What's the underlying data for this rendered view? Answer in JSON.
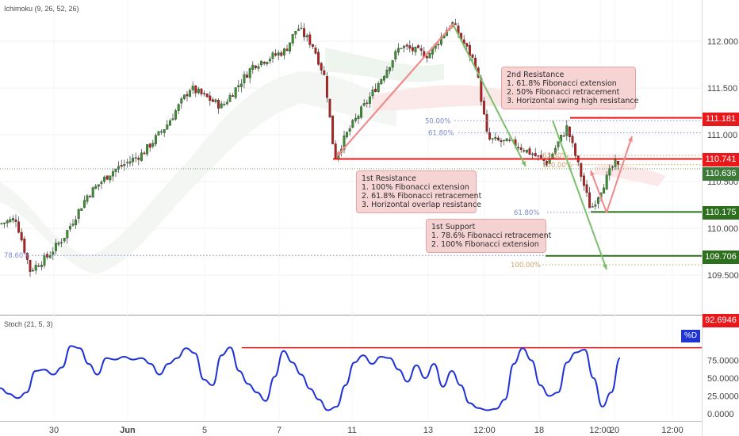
{
  "panels": {
    "price_indicator_label": "Ichimoku (9, 26, 52, 26)",
    "stoch_label": "Stoch (21, 5, 3)",
    "stoch_tag": "%D"
  },
  "price_tags": [
    {
      "value": "111.181",
      "color": "red"
    },
    {
      "value": "110.741",
      "color": "red"
    },
    {
      "value": "110.636",
      "color": "grey"
    },
    {
      "value": "110.175",
      "color": "green"
    },
    {
      "value": "109.706",
      "color": "green"
    },
    {
      "value": "92.6946",
      "color": "red"
    }
  ],
  "annotations": {
    "resistance2": {
      "title": "2nd Resistance",
      "lines": [
        "1. 61.8% Fibonacci extension",
        "2. 50% Fibonacci retracement",
        "3. Horizontal swing high resistance"
      ]
    },
    "resistance1": {
      "title": "1st Resistance",
      "lines": [
        "1. 100% Fibonacci extension",
        "2. 61.8% Fibonacci retracement",
        "3. Horizontal overlap resistance"
      ]
    },
    "support1": {
      "title": "1st Support",
      "lines": [
        "1. 78.6% Fibonacci retracement",
        "2. 100% Fibonacci extension"
      ]
    }
  },
  "fib_labels": [
    "50.00%",
    "61.80%",
    "61.80%",
    "100.00%",
    "61.80%",
    "78.60%",
    "100.00%"
  ],
  "colors": {
    "resistance": "#e8181b",
    "support": "#2e6e1f",
    "candle_up": "#3a8f2e",
    "candle_down": "#b42020",
    "stoch_line": "#1f33d6",
    "arrow_red": "#f08a8a",
    "arrow_green": "#7bbf6a"
  },
  "chart_data": [
    {
      "type": "candlestick",
      "title": "",
      "y_ticks": [
        "112.000",
        "111.500",
        "111.000",
        "110.500",
        "110.000",
        "109.500"
      ],
      "ylim": [
        109.2,
        112.3
      ],
      "x_ticks": [
        "30",
        "Jun",
        "5",
        "7",
        "11",
        "13",
        "12:00",
        "18",
        "12:00",
        "20",
        "12:00"
      ],
      "levels": {
        "resistance_2": 111.181,
        "resistance_1": 110.741,
        "last_price": 110.636,
        "support_level": 110.175,
        "support_1": 109.706
      },
      "key_points": [
        {
          "label": "swing low",
          "x": "8",
          "y": 110.75
        },
        {
          "label": "swing high",
          "x": "14",
          "y": 112.22
        },
        {
          "label": "recent low",
          "x": "19",
          "y": 110.17
        }
      ]
    },
    {
      "type": "line",
      "title": "",
      "series": [
        {
          "name": "%D",
          "values": [
            36,
            28,
            22,
            30,
            60,
            62,
            55,
            65,
            95,
            92,
            70,
            55,
            78,
            76,
            80,
            76,
            78,
            70,
            55,
            70,
            78,
            92,
            85,
            48,
            40,
            82,
            93,
            60,
            42,
            30,
            18,
            52,
            88,
            72,
            55,
            35,
            20,
            5,
            10,
            40,
            72,
            82,
            70,
            80,
            78,
            62,
            45,
            68,
            50,
            70,
            38,
            60,
            40,
            15,
            8,
            5,
            7,
            20,
            70,
            92,
            75,
            40,
            25,
            30,
            72,
            86,
            90,
            50,
            10,
            30,
            78
          ]
        }
      ],
      "y_ticks": [
        "75.0000",
        "50.0000",
        "25.0000",
        "0.0000"
      ],
      "ylim": [
        0,
        100
      ],
      "overbought_level": 92.6946
    }
  ]
}
